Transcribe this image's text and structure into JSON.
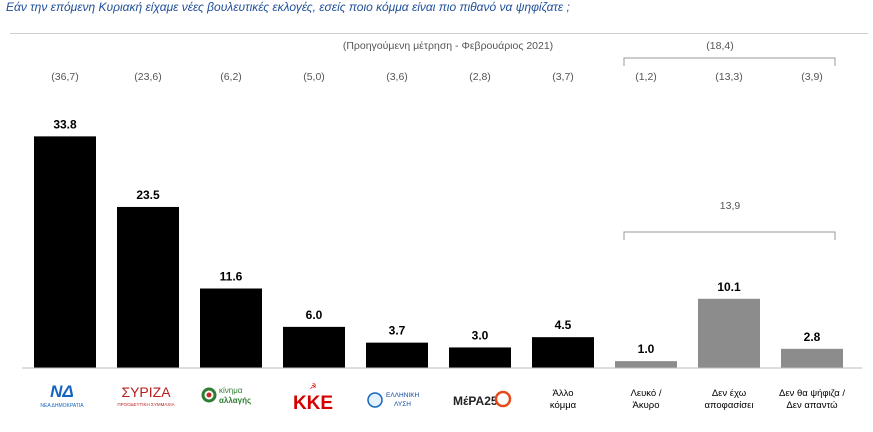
{
  "title": "Εάν την επόμενη Κυριακή είχαμε νέες βουλευτικές εκλογές, εσείς ποιο κόμμα είναι πιο πιθανό να ψηφίζατε ;",
  "previous_label": "(Προηγούμενη μέτρηση - Φεβρουάριος 2021)",
  "group_prev_total": "(18,4)",
  "group_total": "13,9",
  "colors": {
    "party": "#000000",
    "other": "#8c8c8c",
    "title": "#1f4e9a"
  },
  "logos": {
    "nd_text": "ΝΔ",
    "nd_sub": "ΝΕΑ ΔΗΜΟΚΡΑΤΙΑ",
    "syriza_text": "ΣΥΡΙΖΑ",
    "syriza_sub": "ΠΡΟΟΔΕΥΤΙΚΗ ΣΥΜΜΑΧΙΑ",
    "kinal_text1": "κίνημα",
    "kinal_text2": "αλλαγής",
    "kke_text": "ΚΚΕ",
    "el_text1": "ΕΛΛΗΝΙΚΗ",
    "el_text2": "ΛΥΣΗ",
    "mera_text": "ΜέΡΑ25"
  },
  "chart_data": {
    "type": "bar",
    "categories": [
      "ΝΔ",
      "ΣΥΡΙΖΑ",
      "Κίνημα Αλλαγής",
      "ΚΚΕ",
      "Ελληνική Λύση",
      "ΜέΡΑ25",
      "Άλλο κόμμα",
      "Λευκό / Άκυρο",
      "Δεν έχω αποφασίσει",
      "Δεν θα ψήφιζα / Δεν απαντώ"
    ],
    "text_labels": [
      null,
      null,
      null,
      null,
      null,
      null,
      [
        "Άλλο",
        "κόμμα"
      ],
      [
        "Λευκό /",
        "Άκυρο"
      ],
      [
        "Δεν έχω",
        "αποφασίσει"
      ],
      [
        "Δεν θα ψήφιζα /",
        "Δεν απαντώ"
      ]
    ],
    "values": [
      33.8,
      23.5,
      11.6,
      6.0,
      3.7,
      3.0,
      4.5,
      1.0,
      10.1,
      2.8
    ],
    "value_labels": [
      "33.8",
      "23.5",
      "11.6",
      "6.0",
      "3.7",
      "3.0",
      "4.5",
      "1.0",
      "10.1",
      "2.8"
    ],
    "previous": [
      "(36,7)",
      "(23,6)",
      "(6,2)",
      "(5,0)",
      "(3,6)",
      "(2,8)",
      "(3,7)",
      "(1,2)",
      "(13,3)",
      "(3,9)"
    ],
    "bar_kind": [
      "party",
      "party",
      "party",
      "party",
      "party",
      "party",
      "party",
      "other",
      "other",
      "other"
    ],
    "ylim": [
      0,
      34
    ]
  }
}
